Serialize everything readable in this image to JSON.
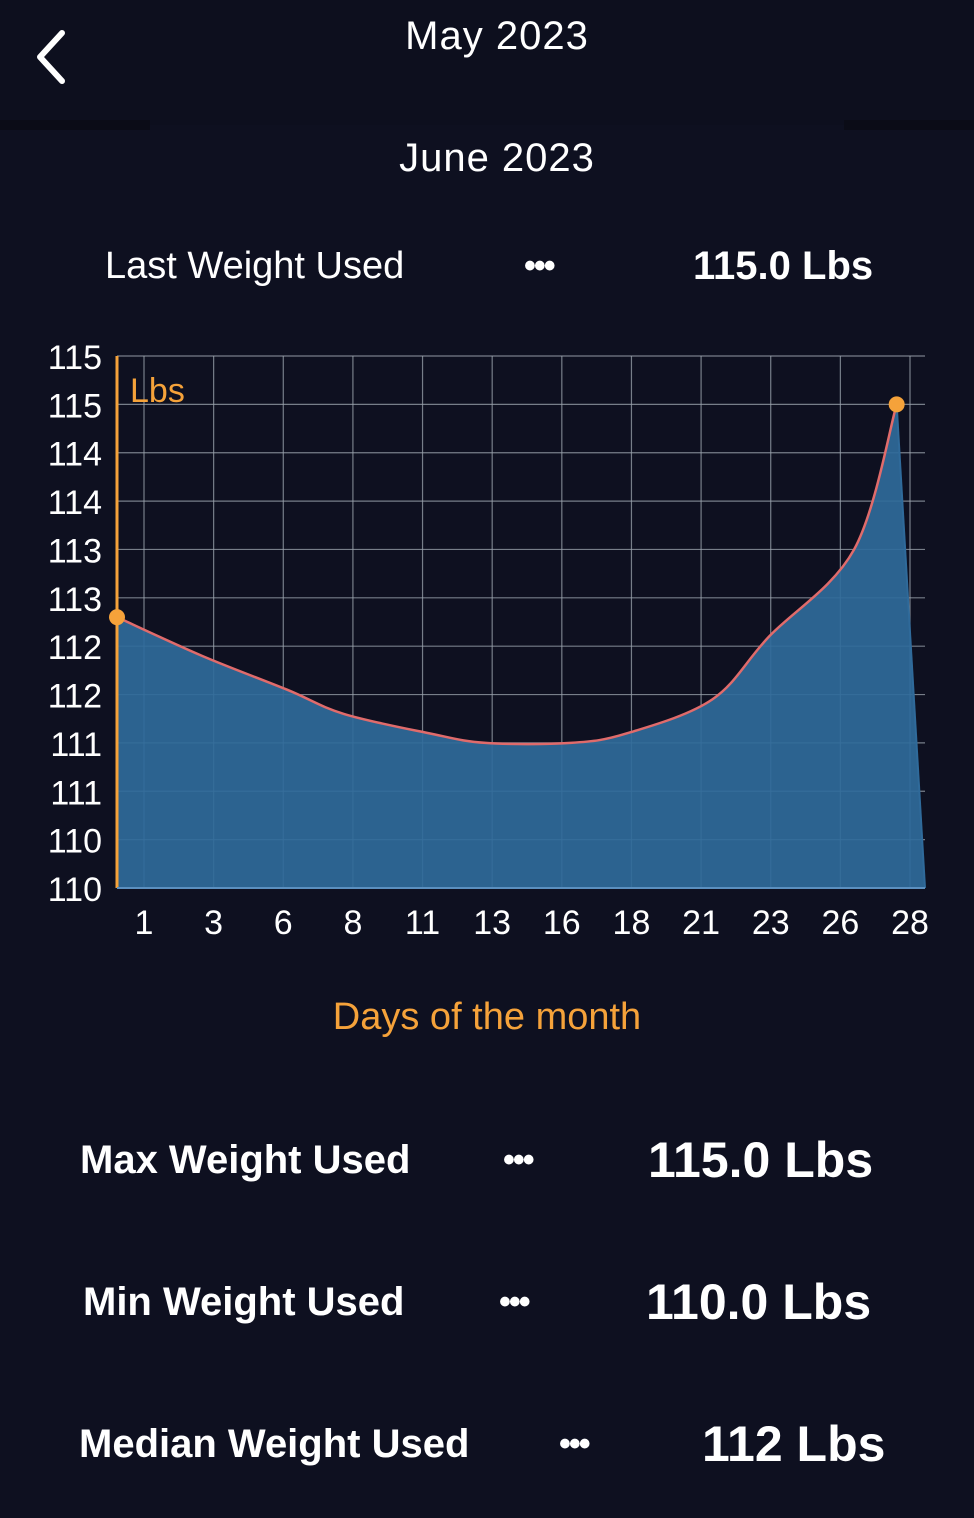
{
  "header": {
    "previous_month": "May 2023",
    "current_month": "June 2023"
  },
  "icons": {
    "back": "chevron-left-icon",
    "more": "ellipsis-icon"
  },
  "colors": {
    "background": "#0e1020",
    "accent": "#f5a23a",
    "area_fill": "#2f6a9a",
    "line": "#e06b6b",
    "grid": "#9aa3ad"
  },
  "stats": {
    "last": {
      "label": "Last Weight Used",
      "dots": "•••",
      "value": "115.0 Lbs"
    },
    "max": {
      "label": "Max Weight Used",
      "dots": "•••",
      "value": "115.0 Lbs"
    },
    "min": {
      "label": "Min Weight Used",
      "dots": "•••",
      "value": "110.0 Lbs"
    },
    "median": {
      "label": "Median Weight Used",
      "dots": "•••",
      "value": "112 Lbs"
    }
  },
  "chart_data": {
    "type": "area",
    "title": "",
    "xlabel": "Days of the month",
    "ylabel": "Lbs",
    "y_tick_labels": [
      "115",
      "115",
      "114",
      "114",
      "113",
      "113",
      "112",
      "112",
      "111",
      "111",
      "110",
      "110"
    ],
    "x_tick_labels": [
      "1",
      "3",
      "6",
      "8",
      "11",
      "13",
      "16",
      "18",
      "21",
      "23",
      "26",
      "28"
    ],
    "ylim": [
      110,
      115.5
    ],
    "xlim": [
      0,
      28.5
    ],
    "grid": true,
    "points": [
      {
        "x": 0,
        "y": 112.8,
        "marked": true
      },
      {
        "x": 3,
        "y": 112.4
      },
      {
        "x": 6,
        "y": 112.05
      },
      {
        "x": 8,
        "y": 111.8
      },
      {
        "x": 11,
        "y": 111.6
      },
      {
        "x": 13,
        "y": 111.5
      },
      {
        "x": 16,
        "y": 111.5
      },
      {
        "x": 18,
        "y": 111.6
      },
      {
        "x": 21,
        "y": 111.95
      },
      {
        "x": 23,
        "y": 112.6
      },
      {
        "x": 26,
        "y": 113.5
      },
      {
        "x": 27.5,
        "y": 115.0,
        "marked": true
      },
      {
        "x": 28.5,
        "y": 110.0
      }
    ]
  }
}
